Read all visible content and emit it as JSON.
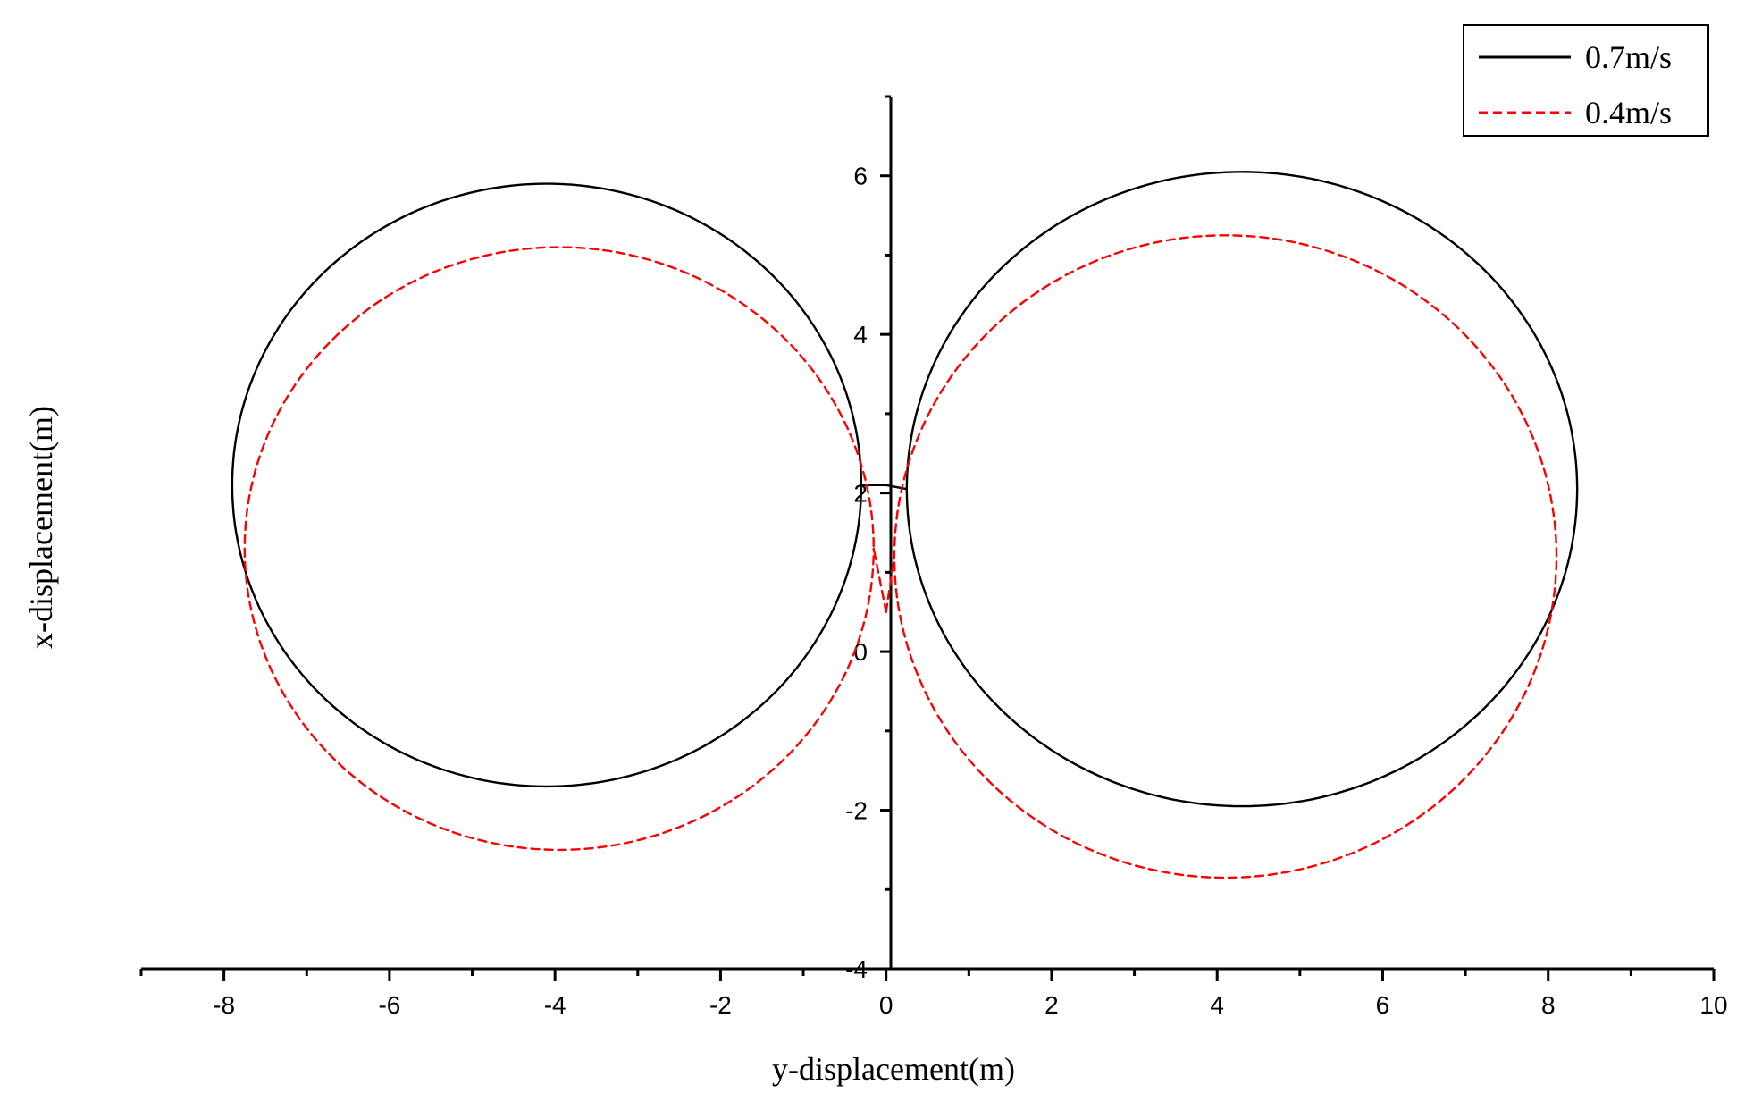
{
  "chart_data": {
    "type": "line",
    "title": "",
    "xlabel": "y-displacement(m)",
    "ylabel": "x-displacement(m)",
    "xlim": [
      -9,
      10
    ],
    "ylim": [
      -4,
      7
    ],
    "x_ticks": [
      -8,
      -6,
      -4,
      -2,
      0,
      2,
      4,
      6,
      8,
      10
    ],
    "y_ticks": [
      -4,
      -2,
      0,
      2,
      4,
      6
    ],
    "x_tick_labels": [
      "-8",
      "-6",
      "-4",
      "-2",
      "0",
      "2",
      "4",
      "6",
      "8",
      "10"
    ],
    "y_tick_labels": [
      "-4",
      "-2",
      "0",
      "2",
      "4",
      "6"
    ],
    "legend_position": "top-right",
    "series": [
      {
        "name": "0.7m/s",
        "color": "#000000",
        "style": "solid",
        "loops": [
          {
            "center": [
              -4.1,
              2.1
            ],
            "ry": 3.8,
            "rx": 3.8
          },
          {
            "center": [
              4.3,
              2.05
            ],
            "ry": 4.0,
            "rx": 4.05
          }
        ],
        "start_point": [
          0.0,
          2.1
        ]
      },
      {
        "name": "0.4m/s",
        "color": "#ff0000",
        "style": "dashed",
        "loops": [
          {
            "center": [
              -3.95,
              1.3
            ],
            "ry": 3.8,
            "rx": 3.8
          },
          {
            "center": [
              4.1,
              1.2
            ],
            "ry": 4.05,
            "rx": 4.0
          }
        ],
        "start_point": [
          0.0,
          0.5
        ]
      }
    ]
  }
}
